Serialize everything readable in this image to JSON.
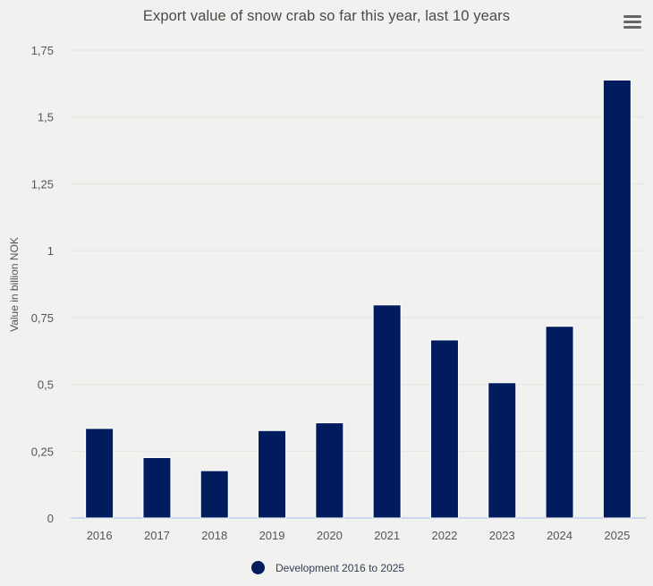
{
  "chart_data": {
    "type": "bar",
    "title": "Export value of snow crab so far this year, last 10 years",
    "xlabel": "",
    "ylabel": "Value in billion NOK",
    "categories": [
      "2016",
      "2017",
      "2018",
      "2019",
      "2020",
      "2021",
      "2022",
      "2023",
      "2024",
      "2025"
    ],
    "series": [
      {
        "name": "Development 2016 to 2025",
        "color": "#001c5e",
        "values": [
          0.335,
          0.226,
          0.177,
          0.327,
          0.356,
          0.797,
          0.666,
          0.506,
          0.717,
          1.638
        ]
      }
    ],
    "ylim": [
      0,
      1.75
    ],
    "yticks": [
      0,
      0.25,
      0.5,
      0.75,
      1,
      1.25,
      1.5,
      1.75
    ],
    "ytick_labels": [
      "0",
      "0,25",
      "0,5",
      "0,75",
      "1",
      "1,25",
      "1,5",
      "1,75"
    ],
    "grid": true,
    "legend_position": "bottom-center"
  },
  "menu": {
    "icon": "hamburger-menu-icon"
  }
}
